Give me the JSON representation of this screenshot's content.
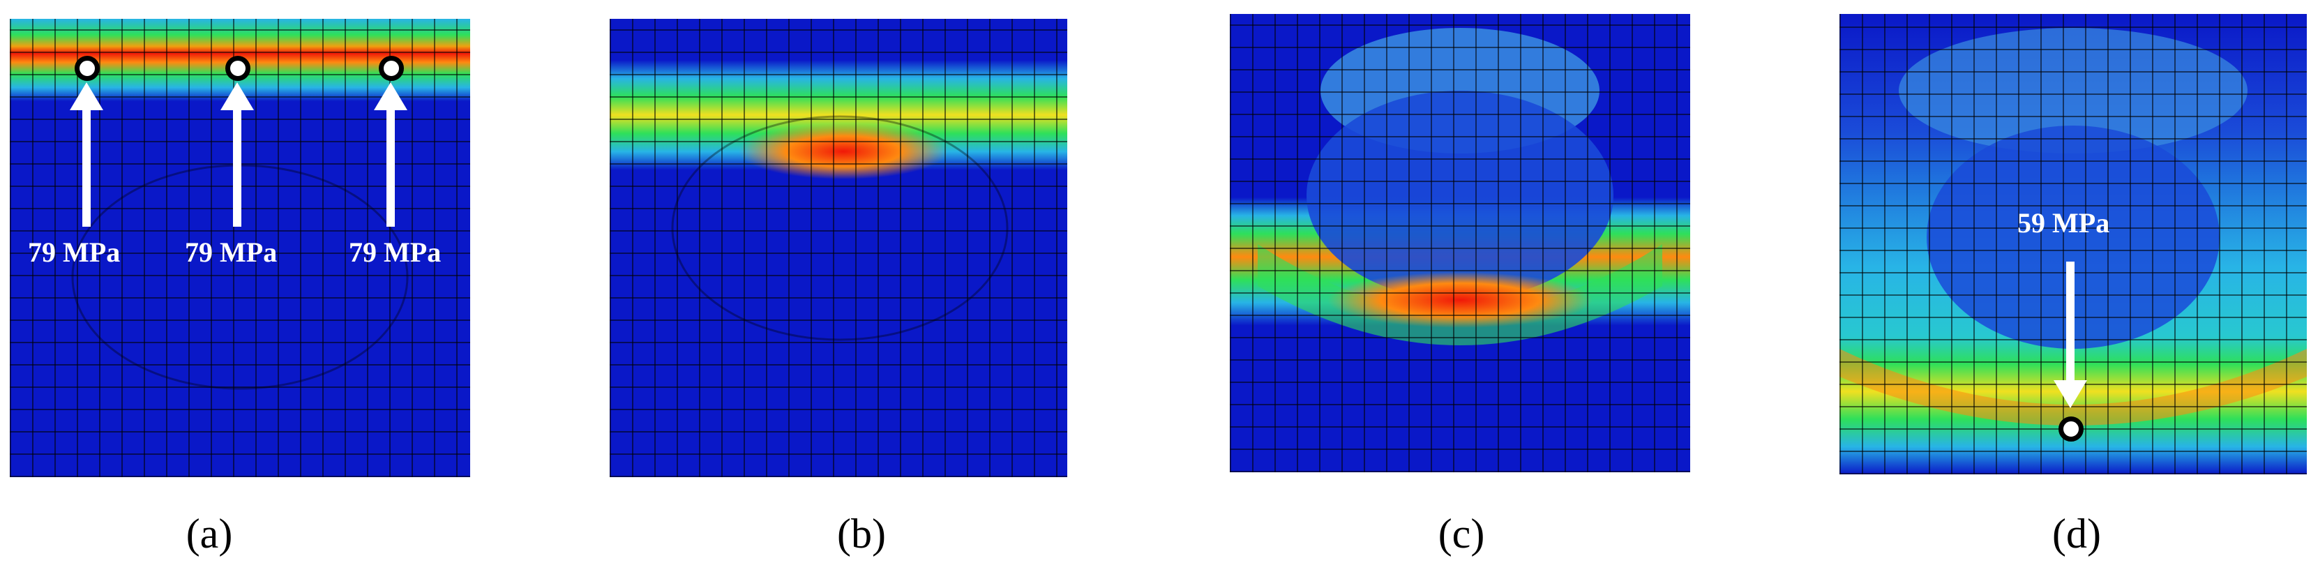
{
  "figure": {
    "panels": [
      {
        "caption": "(a)",
        "annotations": [
          "79 MPa",
          "79 MPa",
          "79 MPa"
        ]
      },
      {
        "caption": "(b)",
        "annotations": []
      },
      {
        "caption": "(c)",
        "annotations": []
      },
      {
        "caption": "(d)",
        "annotations": [
          "59 MPa"
        ]
      }
    ],
    "colors": {
      "background_low": "#0a18c8",
      "mid_cyan": "#28b4e6",
      "green": "#2ee05a",
      "yellow": "#f0e020",
      "orange": "#ff8a10",
      "peak_red": "#f01808",
      "mesh_lines": "#000000"
    }
  }
}
